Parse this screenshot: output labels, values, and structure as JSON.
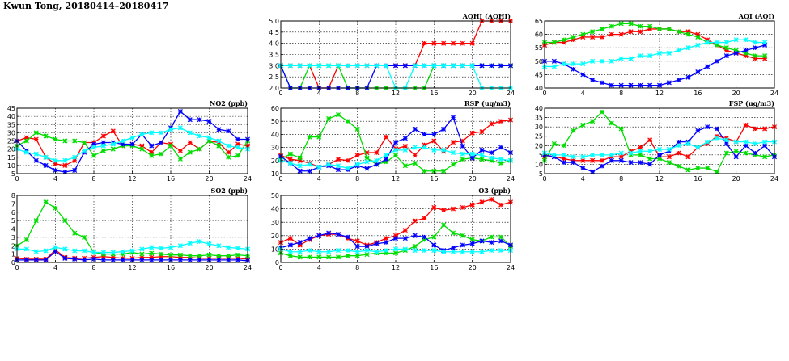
{
  "page": {
    "title": "Kwun Tong, 20180414–20180417"
  },
  "series_colors": {
    "s1": "#ff0000",
    "s2": "#00dd00",
    "s3": "#0000ff",
    "s4": "#00ffff"
  },
  "chart_data": [
    {
      "id": "aqhi",
      "type": "line",
      "title": "AQHI (AQHI)",
      "xlim": [
        0,
        24
      ],
      "ylim": [
        2,
        5
      ],
      "xticks": [
        0,
        4,
        8,
        12,
        16,
        20,
        24
      ],
      "yticks": [
        2.0,
        2.5,
        3.0,
        3.5,
        4.0,
        4.5,
        5.0
      ],
      "ytick_labels": [
        "2.0",
        "2.5",
        "3.0",
        "3.5",
        "4.0",
        "4.5",
        "5.0"
      ],
      "grid": true,
      "series": [
        {
          "color": "#ff0000",
          "values": [
            3,
            3,
            3,
            3,
            2,
            2,
            3,
            3,
            3,
            3,
            3,
            3,
            3,
            3,
            3,
            4,
            4,
            4,
            4,
            4,
            4,
            5,
            5,
            5,
            5
          ]
        },
        {
          "color": "#00dd00",
          "values": [
            3,
            2,
            2,
            3,
            3,
            3,
            3,
            2,
            2,
            2,
            2,
            2,
            2,
            2,
            2,
            2,
            3,
            3,
            3,
            3,
            3,
            3,
            3,
            3,
            3
          ]
        },
        {
          "color": "#0000ff",
          "values": [
            3,
            2,
            2,
            2,
            2,
            2,
            2,
            2,
            2,
            2,
            3,
            3,
            3,
            3,
            3,
            3,
            3,
            3,
            3,
            3,
            3,
            3,
            3,
            3,
            3
          ]
        },
        {
          "color": "#00ffff",
          "values": [
            3,
            3,
            3,
            3,
            3,
            3,
            3,
            3,
            3,
            3,
            3,
            3,
            2,
            2,
            3,
            3,
            3,
            3,
            3,
            3,
            3,
            2,
            2,
            2,
            2
          ]
        }
      ]
    },
    {
      "id": "aqi",
      "type": "line",
      "title": "AQI (AQI)",
      "xlim": [
        0,
        24
      ],
      "ylim": [
        40,
        65
      ],
      "xticks": [
        0,
        4,
        8,
        12,
        16,
        20,
        24
      ],
      "yticks": [
        40,
        45,
        50,
        55,
        60,
        65
      ],
      "ytick_labels": [
        "40",
        "45",
        "50",
        "55",
        "60",
        "65"
      ],
      "grid": true,
      "series": [
        {
          "color": "#ff0000",
          "values": [
            56,
            57,
            57,
            58,
            59,
            59,
            59,
            60,
            60,
            61,
            61,
            62,
            62,
            62,
            61,
            61,
            60,
            58,
            56,
            54,
            53,
            52,
            51,
            51
          ]
        },
        {
          "color": "#00dd00",
          "values": [
            57,
            57,
            58,
            59,
            60,
            61,
            62,
            63,
            64,
            64,
            63,
            63,
            62,
            62,
            61,
            60,
            59,
            57,
            56,
            55,
            54,
            53,
            52,
            52
          ]
        },
        {
          "color": "#0000ff",
          "values": [
            50,
            50,
            49,
            47,
            45,
            43,
            42,
            41,
            41,
            41,
            41,
            41,
            41,
            42,
            43,
            44,
            46,
            48,
            50,
            52,
            53,
            54,
            55,
            56
          ]
        },
        {
          "color": "#00ffff",
          "values": [
            48,
            48,
            49,
            49,
            49,
            50,
            50,
            50,
            51,
            51,
            52,
            52,
            53,
            53,
            54,
            55,
            56,
            57,
            57,
            57,
            58,
            58,
            57,
            57
          ]
        }
      ]
    },
    {
      "id": "no2",
      "type": "line",
      "title": "NO2 (ppb)",
      "xlim": [
        0,
        24
      ],
      "ylim": [
        5,
        45
      ],
      "xticks": [
        0,
        4,
        8,
        12,
        16,
        20,
        24
      ],
      "yticks": [
        5,
        10,
        15,
        20,
        25,
        30,
        35,
        40,
        45
      ],
      "ytick_labels": [
        "5",
        "10",
        "15",
        "20",
        "25",
        "30",
        "35",
        "40",
        "45"
      ],
      "grid": true,
      "series": [
        {
          "color": "#ff0000",
          "values": [
            25,
            27,
            26,
            15,
            11,
            10,
            13,
            24,
            24,
            28,
            31,
            22,
            23,
            22,
            18,
            24,
            23,
            19,
            24,
            20,
            25,
            24,
            18,
            23,
            22
          ]
        },
        {
          "color": "#00dd00",
          "values": [
            22,
            25,
            30,
            28,
            26,
            25,
            25,
            24,
            16,
            19,
            20,
            22,
            22,
            20,
            16,
            17,
            22,
            14,
            18,
            20,
            25,
            22,
            15,
            16,
            25
          ]
        },
        {
          "color": "#0000ff",
          "values": [
            25,
            19,
            13,
            10,
            7,
            6,
            7,
            18,
            23,
            24,
            24,
            23,
            23,
            29,
            22,
            24,
            33,
            43,
            38,
            38,
            37,
            32,
            31,
            26,
            26
          ]
        },
        {
          "color": "#00ffff",
          "values": [
            20,
            18,
            17,
            15,
            13,
            13,
            15,
            19,
            21,
            22,
            23,
            25,
            27,
            29,
            30,
            30,
            32,
            33,
            30,
            28,
            27,
            25,
            22,
            21,
            20
          ]
        }
      ]
    },
    {
      "id": "rsp",
      "type": "line",
      "title": "RSP (ug/m3)",
      "xlim": [
        0,
        24
      ],
      "ylim": [
        10,
        60
      ],
      "xticks": [
        0,
        4,
        8,
        12,
        16,
        20,
        24
      ],
      "yticks": [
        10,
        20,
        30,
        40,
        50,
        60
      ],
      "ytick_labels": [
        "10",
        "20",
        "30",
        "40",
        "50",
        "60"
      ],
      "grid": true,
      "series": [
        {
          "color": "#ff0000",
          "values": [
            24,
            21,
            20,
            18,
            15,
            17,
            21,
            20,
            24,
            26,
            26,
            38,
            29,
            31,
            24,
            32,
            35,
            27,
            34,
            35,
            41,
            42,
            48,
            50,
            51
          ]
        },
        {
          "color": "#00dd00",
          "values": [
            21,
            25,
            22,
            38,
            38,
            52,
            55,
            50,
            44,
            22,
            17,
            19,
            24,
            16,
            18,
            12,
            12,
            12,
            17,
            21,
            22,
            21,
            20,
            18,
            20
          ]
        },
        {
          "color": "#0000ff",
          "values": [
            23,
            18,
            12,
            12,
            15,
            16,
            13,
            13,
            16,
            14,
            17,
            21,
            34,
            37,
            44,
            40,
            40,
            44,
            53,
            31,
            22,
            28,
            26,
            30,
            26
          ]
        },
        {
          "color": "#00ffff",
          "values": [
            20,
            18,
            16,
            17,
            15,
            17,
            16,
            14,
            17,
            19,
            20,
            24,
            28,
            28,
            30,
            30,
            28,
            28,
            26,
            25,
            25,
            24,
            22,
            21,
            20
          ]
        }
      ]
    },
    {
      "id": "fsp",
      "type": "line",
      "title": "FSP (ug/m3)",
      "xlim": [
        0,
        24
      ],
      "ylim": [
        5,
        40
      ],
      "xticks": [
        0,
        4,
        8,
        12,
        16,
        20,
        24
      ],
      "yticks": [
        5,
        10,
        15,
        20,
        25,
        30,
        35,
        40
      ],
      "ytick_labels": [
        "5",
        "10",
        "15",
        "20",
        "25",
        "30",
        "35",
        "40"
      ],
      "grid": true,
      "series": [
        {
          "color": "#ff0000",
          "values": [
            14,
            14,
            13,
            12,
            12,
            12,
            12,
            14,
            14,
            17,
            19,
            23,
            14,
            14,
            16,
            14,
            19,
            21,
            25,
            24,
            22,
            31,
            29,
            29,
            30
          ]
        },
        {
          "color": "#00dd00",
          "values": [
            12,
            21,
            20,
            28,
            31,
            33,
            38,
            32,
            29,
            15,
            15,
            13,
            13,
            11,
            9,
            7,
            8,
            8,
            6,
            16,
            17,
            16,
            15,
            14,
            15
          ]
        },
        {
          "color": "#0000ff",
          "values": [
            15,
            14,
            11,
            11,
            8,
            6,
            9,
            12,
            12,
            11,
            11,
            10,
            15,
            17,
            22,
            22,
            28,
            30,
            29,
            21,
            14,
            20,
            16,
            20,
            14
          ]
        },
        {
          "color": "#00ffff",
          "values": [
            16,
            15,
            15,
            14,
            14,
            15,
            15,
            15,
            16,
            16,
            17,
            17,
            18,
            18,
            20,
            21,
            19,
            22,
            24,
            23,
            22,
            22,
            21,
            22,
            22
          ]
        }
      ]
    },
    {
      "id": "so2",
      "type": "line",
      "title": "SO2 (ppb)",
      "xlim": [
        0,
        24
      ],
      "ylim": [
        0,
        8
      ],
      "xticks": [
        0,
        4,
        8,
        12,
        16,
        20,
        24
      ],
      "yticks": [
        0,
        1,
        2,
        3,
        4,
        5,
        6,
        7,
        8
      ],
      "ytick_labels": [
        "0",
        "1",
        "2",
        "3",
        "4",
        "5",
        "6",
        "7",
        "8"
      ],
      "grid": true,
      "series": [
        {
          "color": "#ff0000",
          "values": [
            0.5,
            0.4,
            0.4,
            0.4,
            1.5,
            0.6,
            0.5,
            0.5,
            0.6,
            0.7,
            0.6,
            0.5,
            0.5,
            0.6,
            0.6,
            0.7,
            0.7,
            0.6,
            0.6,
            0.5,
            0.5,
            0.5,
            0.5,
            0.5,
            0.4
          ]
        },
        {
          "color": "#00dd00",
          "values": [
            2.0,
            2.7,
            5.0,
            7.2,
            6.5,
            5.0,
            3.5,
            3.0,
            1.2,
            1.0,
            1.0,
            1.0,
            1.2,
            1.0,
            1.1,
            1.0,
            0.9,
            0.9,
            0.8,
            0.8,
            0.9,
            0.8,
            0.8,
            0.9,
            0.8
          ]
        },
        {
          "color": "#0000ff",
          "values": [
            0.3,
            0.3,
            0.3,
            0.3,
            1.3,
            0.5,
            0.4,
            0.3,
            0.4,
            0.3,
            0.3,
            0.3,
            0.3,
            0.3,
            0.3,
            0.3,
            0.3,
            0.3,
            0.3,
            0.3,
            0.3,
            0.3,
            0.3,
            0.3,
            0.2
          ]
        },
        {
          "color": "#00ffff",
          "values": [
            1.6,
            1.6,
            1.3,
            1.4,
            1.8,
            1.6,
            1.4,
            1.4,
            1.2,
            1.2,
            1.2,
            1.3,
            1.4,
            1.6,
            1.8,
            1.7,
            1.8,
            2.0,
            2.3,
            2.5,
            2.2,
            2.0,
            1.8,
            1.7,
            1.6
          ]
        }
      ]
    },
    {
      "id": "o3",
      "type": "line",
      "title": "O3 (ppb)",
      "xlim": [
        0,
        24
      ],
      "ylim": [
        0,
        50
      ],
      "xticks": [
        0,
        4,
        8,
        12,
        16,
        20,
        24
      ],
      "yticks": [
        0,
        10,
        20,
        30,
        40,
        50
      ],
      "ytick_labels": [
        "0",
        "10",
        "20",
        "30",
        "40",
        "50"
      ],
      "grid": true,
      "series": [
        {
          "color": "#ff0000",
          "values": [
            15,
            18,
            13,
            17,
            20,
            21,
            21,
            18,
            16,
            13,
            15,
            18,
            20,
            24,
            31,
            33,
            41,
            39,
            40,
            41,
            43,
            45,
            47,
            43,
            45
          ]
        },
        {
          "color": "#00dd00",
          "values": [
            7,
            5,
            4,
            4,
            4,
            4,
            4,
            5,
            5,
            6,
            7,
            7,
            7,
            9,
            12,
            17,
            19,
            28,
            22,
            20,
            17,
            16,
            19,
            19,
            12
          ]
        },
        {
          "color": "#0000ff",
          "values": [
            11,
            13,
            15,
            18,
            20,
            22,
            21,
            19,
            12,
            12,
            14,
            15,
            18,
            18,
            20,
            19,
            13,
            9,
            11,
            13,
            14,
            16,
            15,
            16,
            13
          ]
        },
        {
          "color": "#00ffff",
          "values": [
            10,
            8,
            8,
            9,
            8,
            8,
            9,
            9,
            8,
            9,
            8,
            9,
            10,
            10,
            9,
            9,
            9,
            8,
            8,
            8,
            8,
            8,
            9,
            9,
            9
          ]
        }
      ]
    }
  ]
}
